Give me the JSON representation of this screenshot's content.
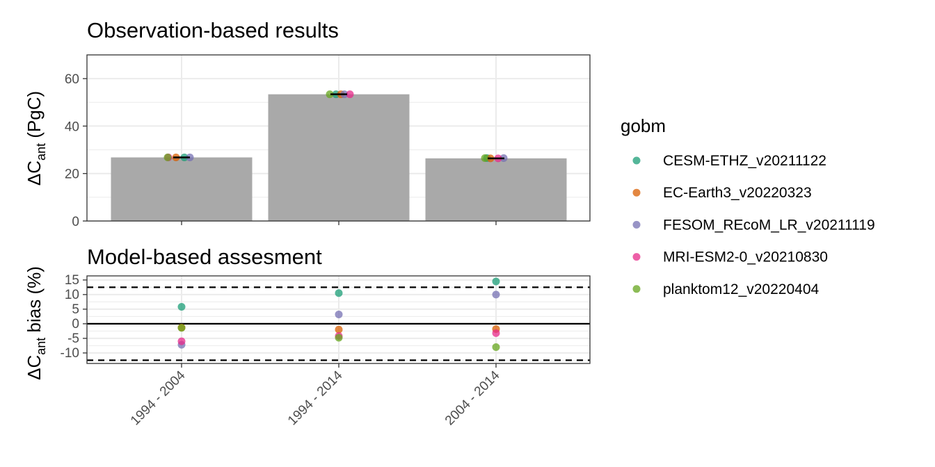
{
  "chart_data": [
    {
      "type": "bar",
      "title": "Observation-based results",
      "ylabel_main": "ΔC",
      "ylabel_sub": "ant",
      "ylabel_unit": " (PgC)",
      "categories": [
        "1994 - 2004",
        "1994 - 2014",
        "2004 - 2014"
      ],
      "values": [
        26.8,
        53.4,
        26.4
      ],
      "ylim": [
        0,
        70
      ],
      "yticks": [
        0,
        20,
        40,
        60
      ],
      "grid": true,
      "points": {
        "CESM-ETHZ_v20211122": [
          26.8,
          53.4,
          26.5
        ],
        "EC-Earth3_v20220323": [
          26.8,
          53.4,
          26.4
        ],
        "FESOM_REcoM_LR_v20211119": [
          26.8,
          53.4,
          26.5
        ],
        "MRI-ESM2-0_v20210830": [
          26.8,
          53.4,
          26.4
        ],
        "planktom12_v20220404": [
          26.8,
          53.4,
          26.5
        ]
      }
    },
    {
      "type": "scatter",
      "title": "Model-based assesment",
      "ylabel_main": "ΔC",
      "ylabel_sub": "ant",
      "ylabel_unit": " bias (%)",
      "categories": [
        "1994 - 2004",
        "1994 - 2014",
        "2004 - 2014"
      ],
      "ylim": [
        -12.5,
        15
      ],
      "yticks": [
        -10,
        -5,
        0,
        5,
        10,
        15
      ],
      "grid": true,
      "hlines": [
        {
          "y": 0,
          "style": "solid"
        },
        {
          "y": 12.5,
          "style": "dashed"
        },
        {
          "y": -12.5,
          "style": "dashed"
        }
      ],
      "series": [
        {
          "name": "CESM-ETHZ_v20211122",
          "color": "#1b9e77",
          "values": [
            5.8,
            10.5,
            14.5
          ]
        },
        {
          "name": "EC-Earth3_v20220323",
          "color": "#d95f02",
          "values": [
            -1.3,
            -2.0,
            -1.8
          ]
        },
        {
          "name": "FESOM_REcoM_LR_v20211119",
          "color": "#7570b3",
          "values": [
            -7.2,
            3.2,
            10.0
          ]
        },
        {
          "name": "MRI-ESM2-0_v20210830",
          "color": "#e7298a",
          "values": [
            -6.0,
            -4.2,
            -3.2
          ]
        },
        {
          "name": "planktom12_v20220404",
          "color": "#66a61e",
          "values": [
            -1.4,
            -4.8,
            -8.0
          ]
        }
      ]
    }
  ],
  "legend": {
    "title": "gobm",
    "placement": "right",
    "items": [
      {
        "label": "CESM-ETHZ_v20211122",
        "color": "#1b9e77"
      },
      {
        "label": "EC-Earth3_v20220323",
        "color": "#d95f02"
      },
      {
        "label": "FESOM_REcoM_LR_v20211119",
        "color": "#7570b3"
      },
      {
        "label": "MRI-ESM2-0_v20210830",
        "color": "#e7298a"
      },
      {
        "label": "planktom12_v20220404",
        "color": "#66a61e"
      }
    ]
  },
  "colors": {
    "bar_fill": "#a9a9a9",
    "grid": "#ebebeb",
    "panel_border": "#333333",
    "axis_text": "#4d4d4d",
    "text": "#000000"
  }
}
